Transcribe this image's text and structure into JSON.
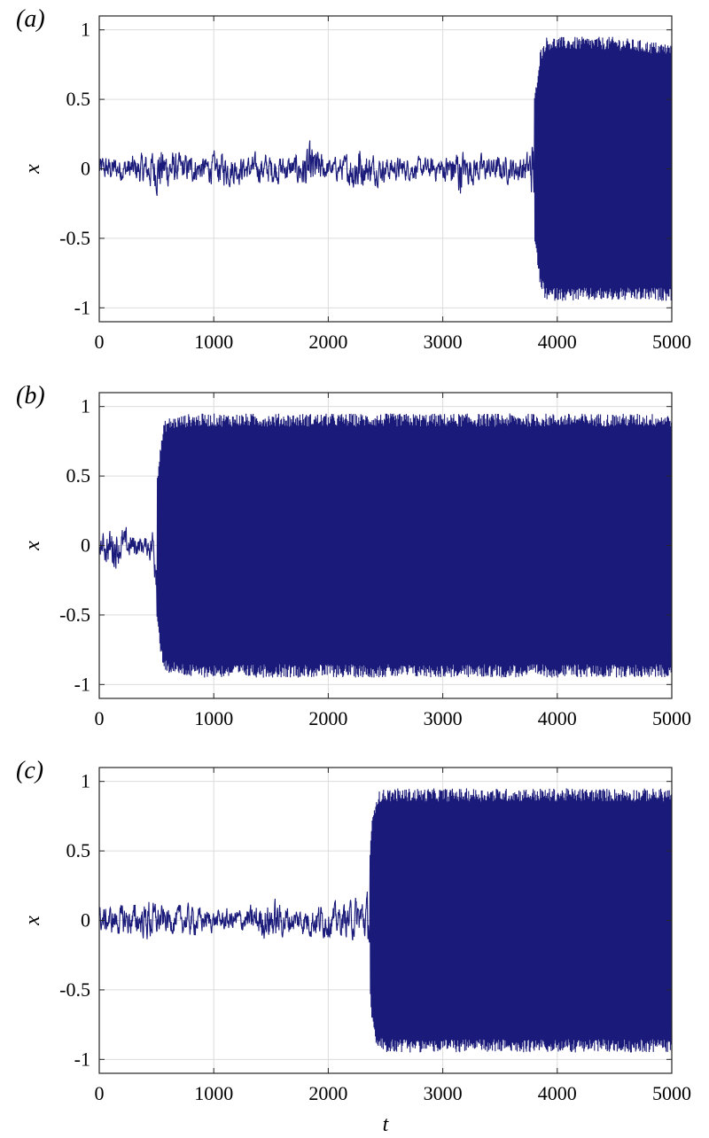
{
  "figure": {
    "xlabel": "t"
  },
  "chart_data": [
    {
      "type": "line",
      "panel_label": "(a)",
      "ylabel": "x",
      "xlim": [
        0,
        5000
      ],
      "ylim": [
        -1.1,
        1.1
      ],
      "xticks": [
        0,
        1000,
        2000,
        3000,
        4000,
        5000
      ],
      "yticks": [
        1,
        0.5,
        0,
        -0.5,
        -1
      ],
      "ytick_labels": [
        "1",
        "0.5",
        "0",
        "-0.5",
        "-1"
      ],
      "grid": true,
      "series": [
        {
          "color": "#1a1a7a",
          "envelope": {
            "t": [
              0,
              200,
              400,
              540,
              560,
              700,
              900,
              1100,
              1300,
              1500,
              1700,
              1860,
              1880,
              2000,
              2150,
              2230,
              2260,
              2300,
              2500,
              2800,
              3000,
              3150,
              3180,
              3400,
              3600,
              3750,
              3800,
              3850,
              3900,
              4000,
              4500,
              5000
            ],
            "upper": [
              0.15,
              0.15,
              0.18,
              0.3,
              0.25,
              0.18,
              0.15,
              0.2,
              0.15,
              0.18,
              0.15,
              0.3,
              0.25,
              0.12,
              0.15,
              0.3,
              0.38,
              0.2,
              0.15,
              0.12,
              0.15,
              0.3,
              0.2,
              0.15,
              0.15,
              0.2,
              0.5,
              0.85,
              0.95,
              0.95,
              0.95,
              0.9
            ],
            "lower": [
              -0.15,
              -0.15,
              -0.2,
              -0.3,
              -0.25,
              -0.18,
              -0.15,
              -0.2,
              -0.15,
              -0.18,
              -0.15,
              -0.35,
              -0.25,
              -0.12,
              -0.15,
              -0.3,
              -0.35,
              -0.2,
              -0.15,
              -0.12,
              -0.15,
              -0.33,
              -0.2,
              -0.15,
              -0.15,
              -0.2,
              -0.5,
              -0.85,
              -0.95,
              -0.95,
              -0.95,
              -0.95
            ]
          }
        }
      ]
    },
    {
      "type": "line",
      "panel_label": "(b)",
      "ylabel": "x",
      "xlim": [
        0,
        5000
      ],
      "ylim": [
        -1.1,
        1.1
      ],
      "xticks": [
        0,
        1000,
        2000,
        3000,
        4000,
        5000
      ],
      "yticks": [
        1,
        0.5,
        0,
        -0.5,
        -1
      ],
      "ytick_labels": [
        "1",
        "0.5",
        "0",
        "-0.5",
        "-1"
      ],
      "grid": true,
      "series": [
        {
          "color": "#1a1a7a",
          "envelope": {
            "t": [
              0,
              100,
              200,
              300,
              400,
              450,
              500,
              540,
              570,
              600,
              800,
              1000,
              2000,
              3000,
              4000,
              5000
            ],
            "upper": [
              0.1,
              0.25,
              0.2,
              0.15,
              0.1,
              0.2,
              0.45,
              0.75,
              0.9,
              0.92,
              0.95,
              0.95,
              0.95,
              0.95,
              0.95,
              0.95
            ],
            "lower": [
              -0.1,
              -0.28,
              -0.2,
              -0.15,
              -0.1,
              -0.2,
              -0.5,
              -0.8,
              -0.9,
              -0.92,
              -0.95,
              -0.95,
              -0.95,
              -0.95,
              -0.95,
              -0.95
            ]
          }
        }
      ]
    },
    {
      "type": "line",
      "panel_label": "(c)",
      "ylabel": "x",
      "xlim": [
        0,
        5000
      ],
      "ylim": [
        -1.1,
        1.1
      ],
      "xticks": [
        0,
        1000,
        2000,
        3000,
        4000,
        5000
      ],
      "yticks": [
        1,
        0.5,
        0,
        -0.5,
        -1
      ],
      "ytick_labels": [
        "1",
        "0.5",
        "0",
        "-0.5",
        "-1"
      ],
      "grid": true,
      "series": [
        {
          "color": "#1a1a7a",
          "envelope": {
            "t": [
              0,
              200,
              400,
              440,
              460,
              600,
              800,
              1000,
              1300,
              1500,
              1600,
              1700,
              1900,
              2100,
              2300,
              2350,
              2380,
              2420,
              2500,
              3000,
              4000,
              5000
            ],
            "upper": [
              0.15,
              0.18,
              0.2,
              0.32,
              0.22,
              0.15,
              0.18,
              0.12,
              0.15,
              0.25,
              0.2,
              0.15,
              0.2,
              0.18,
              0.28,
              0.3,
              0.7,
              0.92,
              0.95,
              0.95,
              0.95,
              0.95
            ],
            "lower": [
              -0.15,
              -0.18,
              -0.2,
              -0.3,
              -0.22,
              -0.15,
              -0.18,
              -0.12,
              -0.15,
              -0.25,
              -0.2,
              -0.15,
              -0.2,
              -0.18,
              -0.25,
              -0.3,
              -0.7,
              -0.92,
              -0.95,
              -0.95,
              -0.95,
              -0.95
            ]
          }
        }
      ]
    }
  ]
}
